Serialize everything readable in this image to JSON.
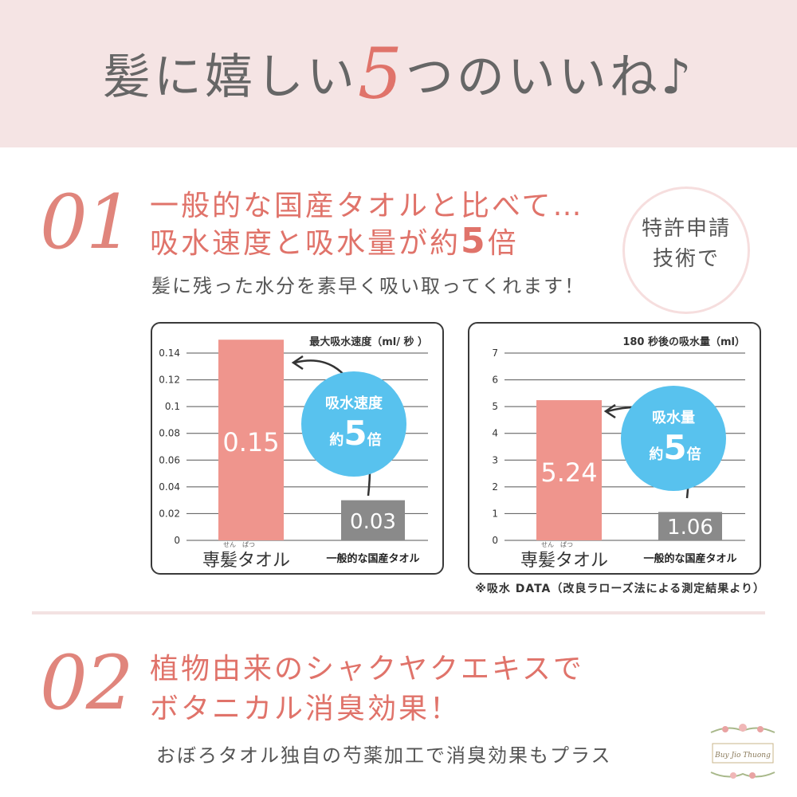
{
  "banner": {
    "title_before": "髪に嬉しい",
    "title_number": "5",
    "title_after": "つのいいね♪"
  },
  "section1": {
    "number": "01",
    "heading_line1": "一般的な国産タオルと比べて…",
    "heading_line2_before": "吸水速度と吸水量が約",
    "heading_line2_number": "5",
    "heading_line2_after": "倍",
    "subtext": "髪に残った水分を素早く吸い取ってくれます！",
    "badge_line1": "特許申請",
    "badge_line2": "技術で"
  },
  "chart_data": [
    {
      "type": "bar",
      "title": "最大吸水速度（ml/ 秒 ）",
      "categories": [
        "専髪タオル",
        "一般的な国産タオル"
      ],
      "category_ruby": "せん　ぱつ",
      "values": [
        0.15,
        0.03
      ],
      "value_labels": [
        "0.15",
        "0.03"
      ],
      "ylim": [
        0,
        0.14
      ],
      "yticks": [
        "0",
        "0.02",
        "0.04",
        "0.06",
        "0.08",
        "0.1",
        "0.12",
        "0.14"
      ],
      "callout_line1": "吸水速度",
      "callout_prefix": "約",
      "callout_number": "5",
      "callout_suffix": "倍",
      "colors": {
        "main": "#ef958d",
        "other": "#8a8a8a",
        "callout": "#58c2ee"
      }
    },
    {
      "type": "bar",
      "title": "180 秒後の吸水量（ml）",
      "categories": [
        "専髪タオル",
        "一般的な国産タオル"
      ],
      "category_ruby": "せん　ぱつ",
      "values": [
        5.24,
        1.06
      ],
      "value_labels": [
        "5.24",
        "1.06"
      ],
      "ylim": [
        0,
        7
      ],
      "yticks": [
        "0",
        "1",
        "2",
        "3",
        "4",
        "5",
        "6",
        "7"
      ],
      "callout_line1": "吸水量",
      "callout_prefix": "約",
      "callout_number": "5",
      "callout_suffix": "倍",
      "colors": {
        "main": "#ef958d",
        "other": "#8a8a8a",
        "callout": "#58c2ee"
      }
    }
  ],
  "data_note": "※吸水 DATA（改良ラローズ法による測定結果より）",
  "section2": {
    "number": "02",
    "heading_line1": "植物由来のシャクヤクエキスで",
    "heading_line2": "ボタニカル消臭効果！",
    "subtext": "おぼろタオル独自の芍薬加工で消臭効果もプラス"
  },
  "logo": {
    "text": "Buy Jio Thuong"
  }
}
